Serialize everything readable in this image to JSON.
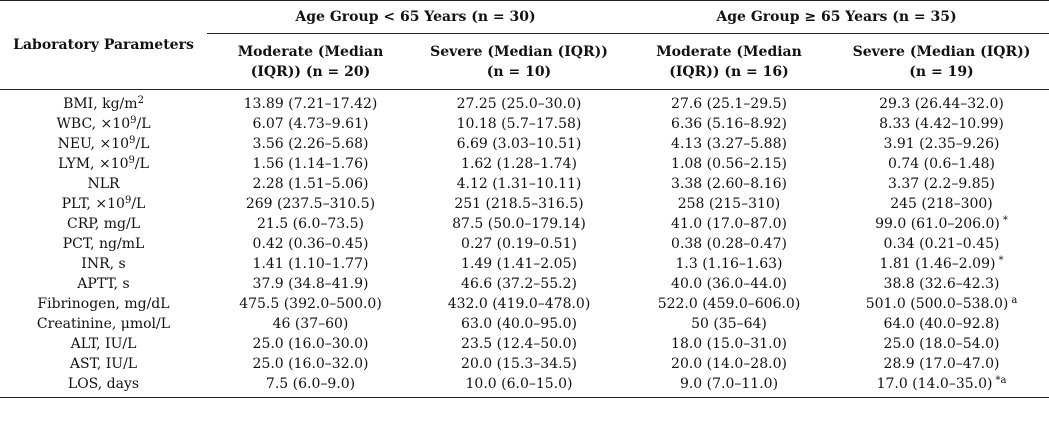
{
  "header": {
    "param_label": "Laboratory Parameters",
    "group1": "Age Group < 65 Years (n = 30)",
    "group2": "Age Group ≥ 65 Years (n = 35)",
    "sub": [
      {
        "line1": "Moderate (Median",
        "line2": "(IQR)) (n = 20)"
      },
      {
        "line1": "Severe (Median (IQR))",
        "line2": "(n = 10)"
      },
      {
        "line1": "Moderate (Median",
        "line2": "(IQR)) (n = 16)"
      },
      {
        "line1": "Severe (Median (IQR))",
        "line2": "(n = 19)"
      }
    ]
  },
  "rows": [
    {
      "base": "BMI, kg/m",
      "sup": "2",
      "tail": "",
      "cells": [
        "13.89 (7.21–17.42)",
        "27.25 (25.0–30.0)",
        "27.6 (25.1–29.5)",
        "29.3 (26.44–32.0)"
      ],
      "mark": ""
    },
    {
      "base": "WBC, ×10",
      "sup": "9",
      "tail": "/L",
      "cells": [
        "6.07 (4.73–9.61)",
        "10.18 (5.7–17.58)",
        "6.36 (5.16–8.92)",
        "8.33 (4.42–10.99)"
      ],
      "mark": ""
    },
    {
      "base": "NEU, ×10",
      "sup": "9",
      "tail": "/L",
      "cells": [
        "3.56 (2.26–5.68)",
        "6.69 (3.03–10.51)",
        "4.13 (3.27–5.88)",
        "3.91 (2.35–9.26)"
      ],
      "mark": ""
    },
    {
      "base": "LYM, ×10",
      "sup": "9",
      "tail": "/L",
      "cells": [
        "1.56 (1.14–1.76)",
        "1.62 (1.28–1.74)",
        "1.08 (0.56–2.15)",
        "0.74 (0.6–1.48)"
      ],
      "mark": ""
    },
    {
      "base": "NLR",
      "sup": "",
      "tail": "",
      "cells": [
        "2.28 (1.51–5.06)",
        "4.12 (1.31–10.11)",
        "3.38 (2.60–8.16)",
        "3.37 (2.2–9.85)"
      ],
      "mark": ""
    },
    {
      "base": "PLT, ×10",
      "sup": "9",
      "tail": "/L",
      "cells": [
        "269 (237.5–310.5)",
        "251 (218.5–316.5)",
        "258 (215–310)",
        "245 (218–300)"
      ],
      "mark": ""
    },
    {
      "base": "CRP, mg/L",
      "sup": "",
      "tail": "",
      "cells": [
        "21.5 (6.0–73.5)",
        "87.5 (50.0–179.14)",
        "41.0 (17.0–87.0)",
        "99.0 (61.0–206.0)"
      ],
      "mark": "*"
    },
    {
      "base": "PCT, ng/mL",
      "sup": "",
      "tail": "",
      "cells": [
        "0.42 (0.36–0.45)",
        "0.27 (0.19–0.51)",
        "0.38 (0.28–0.47)",
        "0.34 (0.21–0.45)"
      ],
      "mark": ""
    },
    {
      "base": "INR, s",
      "sup": "",
      "tail": "",
      "cells": [
        "1.41 (1.10–1.77)",
        "1.49 (1.41–2.05)",
        "1.3 (1.16–1.63)",
        "1.81 (1.46–2.09)"
      ],
      "mark": "*"
    },
    {
      "base": "APTT, s",
      "sup": "",
      "tail": "",
      "cells": [
        "37.9 (34.8–41.9)",
        "46.6 (37.2–55.2)",
        "40.0 (36.0–44.0)",
        "38.8 (32.6–42.3)"
      ],
      "mark": ""
    },
    {
      "base": "Fibrinogen, mg/dL",
      "sup": "",
      "tail": "",
      "cells": [
        "475.5 (392.0–500.0)",
        "432.0 (419.0–478.0)",
        "522.0 (459.0–606.0)",
        "501.0 (500.0–538.0)"
      ],
      "mark": "a"
    },
    {
      "base": "Creatinine, μmol/L",
      "sup": "",
      "tail": "",
      "cells": [
        "46 (37–60)",
        "63.0 (40.0–95.0)",
        "50 (35–64)",
        "64.0 (40.0–92.8)"
      ],
      "mark": ""
    },
    {
      "base": "ALT, IU/L",
      "sup": "",
      "tail": "",
      "cells": [
        "25.0 (16.0–30.0)",
        "23.5 (12.4–50.0)",
        "18.0 (15.0–31.0)",
        "25.0 (18.0–54.0)"
      ],
      "mark": ""
    },
    {
      "base": "AST, IU/L",
      "sup": "",
      "tail": "",
      "cells": [
        "25.0 (16.0–32.0)",
        "20.0 (15.3–34.5)",
        "20.0 (14.0–28.0)",
        "28.9 (17.0–47.0)"
      ],
      "mark": ""
    },
    {
      "base": "LOS, days",
      "sup": "",
      "tail": "",
      "cells": [
        "7.5 (6.0–9.0)",
        "10.0 (6.0–15.0)",
        "9.0 (7.0–11.0)",
        "17.0 (14.0–35.0)"
      ],
      "mark": "*a"
    }
  ]
}
